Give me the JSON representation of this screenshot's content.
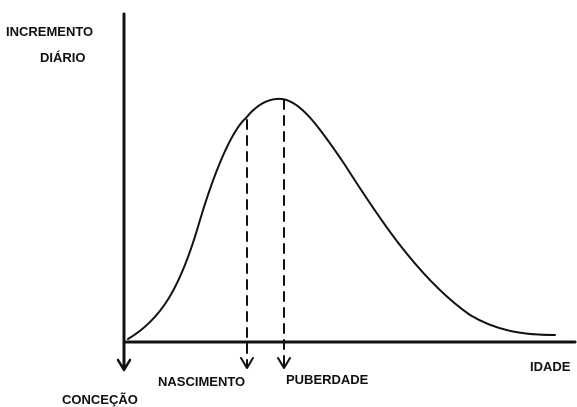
{
  "y_axis_label": [
    "INCREMENTO",
    "DIÁRIO"
  ],
  "x_axis_label": "IDADE",
  "markers": [
    "CONCEÇÃO",
    "NASCIMENTO",
    "PUBERDADE"
  ]
}
